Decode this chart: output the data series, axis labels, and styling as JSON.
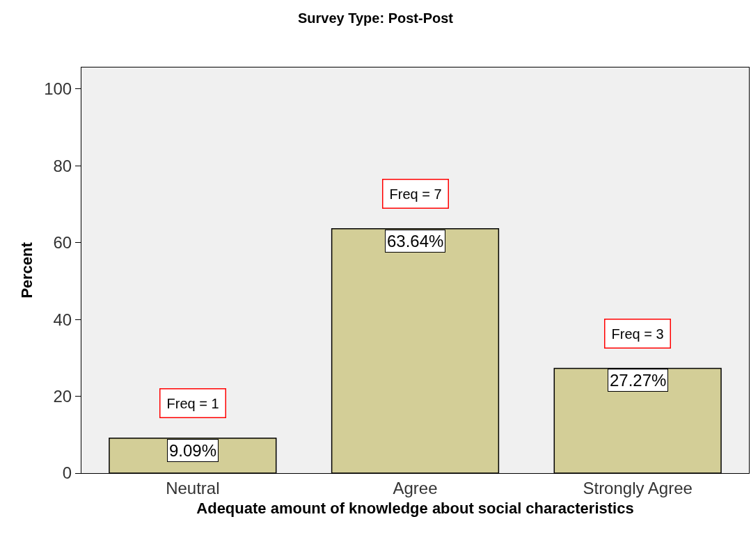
{
  "chart_data": {
    "type": "bar",
    "title": "Survey Type: Post-Post",
    "xlabel": "Adequate amount of knowledge about social characteristics",
    "ylabel": "Percent",
    "categories": [
      "Neutral",
      "Agree",
      "Strongly Agree"
    ],
    "values": [
      9.09,
      63.64,
      27.27
    ],
    "value_labels": [
      "9.09%",
      "63.64%",
      "27.27%"
    ],
    "color": "#d3ce97",
    "ylim": [
      0,
      105.6
    ],
    "yticks": [
      0,
      20,
      40,
      60,
      80,
      100
    ],
    "grid": false,
    "legend": false,
    "annotations": [
      "Freq = 1",
      "Freq = 7",
      "Freq = 3"
    ]
  }
}
